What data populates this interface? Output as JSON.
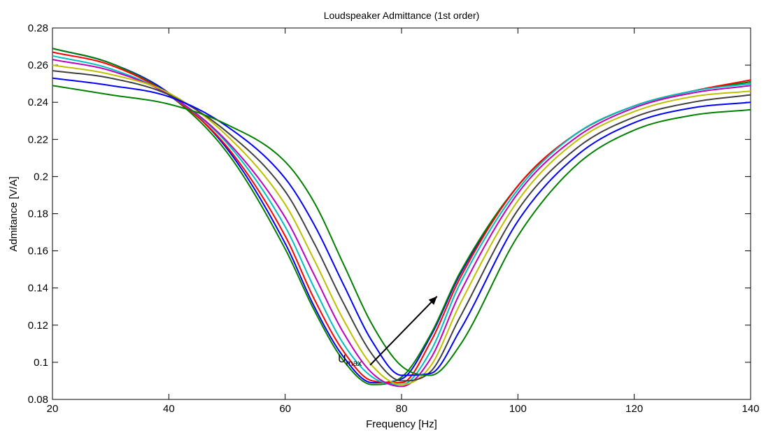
{
  "chart_data": {
    "type": "line",
    "title": "Loudspeaker Admittance (1st order)",
    "xlabel": "Frequency [Hz]",
    "ylabel": "Admitance [V/A]",
    "xlim": [
      20,
      140
    ],
    "ylim": [
      0.08,
      0.28
    ],
    "xticks": [
      20,
      40,
      60,
      80,
      100,
      120,
      140
    ],
    "yticks": [
      0.08,
      0.1,
      0.12,
      0.14,
      0.16,
      0.18,
      0.2,
      0.22,
      0.24,
      0.26,
      0.28
    ],
    "xtick_labels": [
      "20",
      "40",
      "60",
      "80",
      "100",
      "120",
      "140"
    ],
    "ytick_labels": [
      "0.08",
      "0.1",
      "0.12",
      "0.14",
      "0.16",
      "0.18",
      "0.2",
      "0.22",
      "0.24",
      "0.26",
      "0.28"
    ],
    "grid": false,
    "legend": "none",
    "annotation": {
      "text_main": "U",
      "text_sub": "max",
      "arrow_from": [
        74.6,
        0.0985
      ],
      "arrow_to": [
        86.1,
        0.1355
      ]
    },
    "series": [
      {
        "color": "#0000ff",
        "x": [
          20,
          30,
          40,
          50,
          60,
          65,
          70,
          75,
          80,
          85,
          90,
          100,
          110,
          120,
          130,
          140
        ],
        "y": [
          0.269,
          0.261,
          0.245,
          0.215,
          0.164,
          0.13,
          0.103,
          0.089,
          0.091,
          0.114,
          0.147,
          0.195,
          0.223,
          0.238,
          0.246,
          0.251
        ]
      },
      {
        "color": "#008000",
        "x": [
          20,
          30,
          40,
          50,
          60,
          65,
          70,
          75,
          80,
          85,
          90,
          100,
          110,
          120,
          130,
          140
        ],
        "y": [
          0.269,
          0.261,
          0.244,
          0.213,
          0.161,
          0.128,
          0.101,
          0.088,
          0.092,
          0.115,
          0.148,
          0.195,
          0.223,
          0.238,
          0.246,
          0.251
        ]
      },
      {
        "color": "#ff0000",
        "x": [
          20,
          30,
          40,
          50,
          60,
          65,
          70,
          75,
          80,
          85,
          90,
          100,
          110,
          120,
          130,
          140
        ],
        "y": [
          0.267,
          0.26,
          0.244,
          0.216,
          0.168,
          0.134,
          0.106,
          0.09,
          0.089,
          0.111,
          0.145,
          0.195,
          0.223,
          0.238,
          0.246,
          0.252
        ]
      },
      {
        "color": "#00bfbf",
        "x": [
          20,
          30,
          40,
          50,
          60,
          65,
          70,
          75,
          80,
          85,
          90,
          100,
          110,
          120,
          130,
          140
        ],
        "y": [
          0.265,
          0.258,
          0.244,
          0.218,
          0.173,
          0.14,
          0.11,
          0.092,
          0.088,
          0.106,
          0.142,
          0.193,
          0.223,
          0.238,
          0.246,
          0.25
        ]
      },
      {
        "color": "#bf00bf",
        "x": [
          20,
          30,
          40,
          50,
          60,
          65,
          70,
          75,
          80,
          85,
          90,
          100,
          110,
          120,
          130,
          140
        ],
        "y": [
          0.263,
          0.257,
          0.244,
          0.219,
          0.178,
          0.147,
          0.116,
          0.094,
          0.087,
          0.102,
          0.137,
          0.191,
          0.221,
          0.237,
          0.245,
          0.249
        ]
      },
      {
        "color": "#bfbf00",
        "x": [
          20,
          30,
          40,
          50,
          60,
          65,
          70,
          75,
          80,
          85,
          90,
          100,
          110,
          120,
          130,
          140
        ],
        "y": [
          0.26,
          0.255,
          0.245,
          0.222,
          0.185,
          0.155,
          0.123,
          0.098,
          0.088,
          0.098,
          0.131,
          0.187,
          0.219,
          0.235,
          0.243,
          0.246
        ]
      },
      {
        "color": "#404040",
        "x": [
          20,
          30,
          40,
          50,
          60,
          65,
          70,
          75,
          80,
          85,
          90,
          100,
          110,
          120,
          130,
          140
        ],
        "y": [
          0.257,
          0.253,
          0.244,
          0.224,
          0.192,
          0.164,
          0.132,
          0.104,
          0.09,
          0.095,
          0.124,
          0.182,
          0.215,
          0.232,
          0.24,
          0.244
        ]
      },
      {
        "color": "#0000ff",
        "x": [
          20,
          30,
          40,
          50,
          60,
          65,
          70,
          75,
          80,
          85,
          90,
          100,
          110,
          120,
          130,
          140
        ],
        "y": [
          0.253,
          0.249,
          0.243,
          0.227,
          0.199,
          0.174,
          0.142,
          0.111,
          0.093,
          0.094,
          0.117,
          0.176,
          0.211,
          0.229,
          0.237,
          0.24
        ]
      },
      {
        "color": "#008000",
        "x": [
          20,
          30,
          40,
          50,
          60,
          65,
          70,
          75,
          80,
          85,
          90,
          100,
          110,
          120,
          130,
          140
        ],
        "y": [
          0.249,
          0.244,
          0.239,
          0.228,
          0.208,
          0.186,
          0.153,
          0.12,
          0.098,
          0.093,
          0.109,
          0.168,
          0.206,
          0.225,
          0.233,
          0.236
        ]
      }
    ]
  }
}
